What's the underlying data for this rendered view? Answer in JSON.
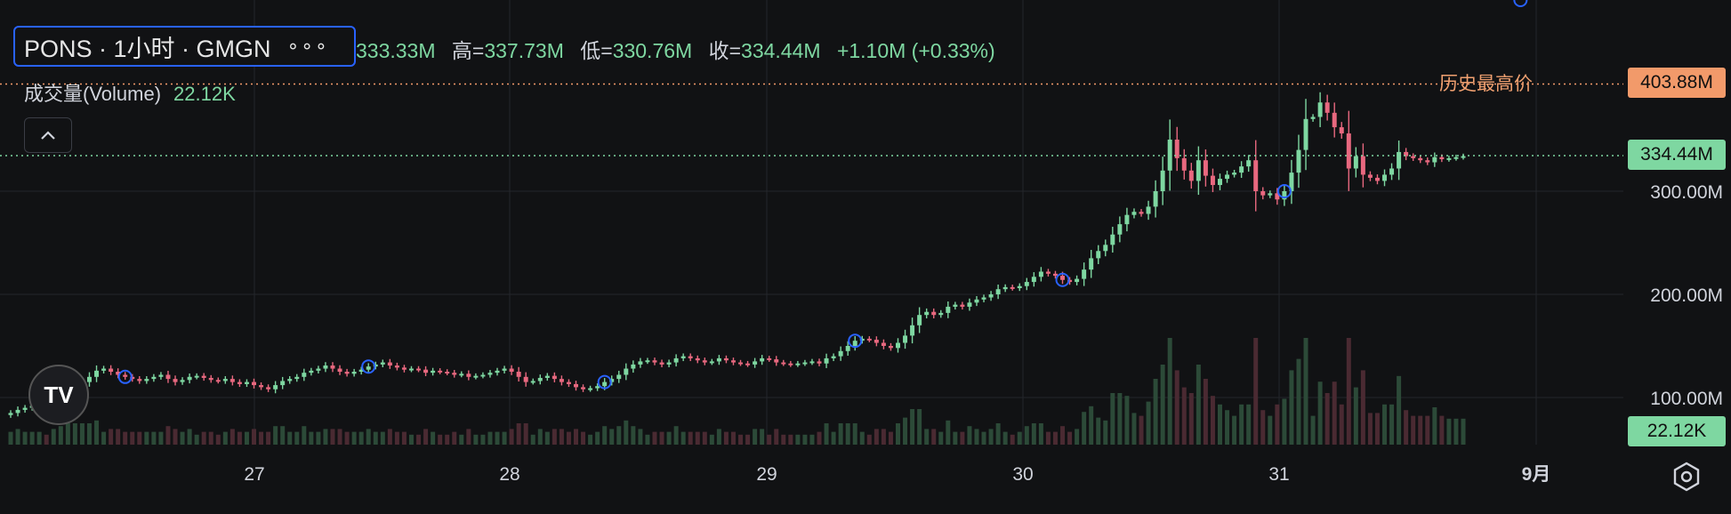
{
  "header": {
    "symbol": "PONS · 1小时 · GMGN",
    "more": "∘∘∘",
    "open_value": "333.33M",
    "high_label": "高=",
    "high_value": "337.73M",
    "low_label": "低=",
    "low_value": "330.76M",
    "close_label": "收=",
    "close_value": "334.44M",
    "change": "+1.10M (+0.33%)"
  },
  "volume_legend": {
    "label": "成交量(Volume)",
    "value": "22.12K"
  },
  "ath": {
    "label": "历史最高价",
    "value": "403.88M"
  },
  "last_price_tag": "334.44M",
  "volume_tag": "22.12K",
  "colors": {
    "up": "#7ed7a1",
    "down": "#e8687f",
    "ath": "#f29a6a",
    "marker": "#2962ff"
  },
  "chart_data": {
    "type": "candlestick",
    "y_axis_ticks": [
      "100.00M",
      "200.00M",
      "300.00M"
    ],
    "y_axis_values": [
      100,
      200,
      300
    ],
    "x_axis_ticks": [
      "27",
      "28",
      "29",
      "30",
      "31",
      "9月"
    ],
    "ylim": [
      60,
      430
    ],
    "y_unit": "M",
    "ath_price": 403.88,
    "last_price": 334.44,
    "close_series": [
      85,
      88,
      90,
      92,
      94,
      93,
      96,
      100,
      105,
      110,
      115,
      120,
      126,
      128,
      125,
      122,
      120,
      118,
      116,
      118,
      120,
      122,
      118,
      115,
      117,
      120,
      121,
      119,
      117,
      116,
      118,
      115,
      113,
      115,
      112,
      110,
      108,
      112,
      116,
      118,
      120,
      124,
      126,
      128,
      131,
      128,
      125,
      123,
      125,
      127,
      130,
      132,
      134,
      131,
      129,
      127,
      128,
      127,
      124,
      126,
      125,
      124,
      122,
      123,
      120,
      121,
      122,
      124,
      126,
      128,
      125,
      120,
      115,
      116,
      119,
      121,
      118,
      115,
      113,
      110,
      108,
      109,
      111,
      115,
      118,
      122,
      128,
      132,
      135,
      136,
      134,
      132,
      134,
      138,
      140,
      138,
      136,
      134,
      135,
      138,
      136,
      134,
      133,
      132,
      135,
      138,
      137,
      134,
      133,
      132,
      133,
      134,
      135,
      133,
      138,
      140,
      145,
      150,
      155,
      157,
      156,
      153,
      150,
      148,
      153,
      160,
      170,
      180,
      183,
      180,
      182,
      188,
      190,
      188,
      192,
      195,
      197,
      200,
      205,
      207,
      206,
      208,
      212,
      217,
      222,
      220,
      218,
      214,
      212,
      215,
      224,
      235,
      242,
      248,
      258,
      268,
      277,
      280,
      278,
      285,
      300,
      320,
      350,
      332,
      320,
      310,
      330,
      315,
      306,
      312,
      316,
      318,
      324,
      330,
      300,
      296,
      298,
      292,
      300,
      318,
      340,
      370,
      372,
      386,
      376,
      362,
      356,
      322,
      334,
      316,
      313,
      310,
      316,
      322,
      338,
      334,
      332,
      330,
      328,
      333,
      331,
      332,
      333,
      334
    ],
    "marker_indices": [
      16,
      50,
      83,
      118,
      147,
      178,
      211
    ]
  }
}
